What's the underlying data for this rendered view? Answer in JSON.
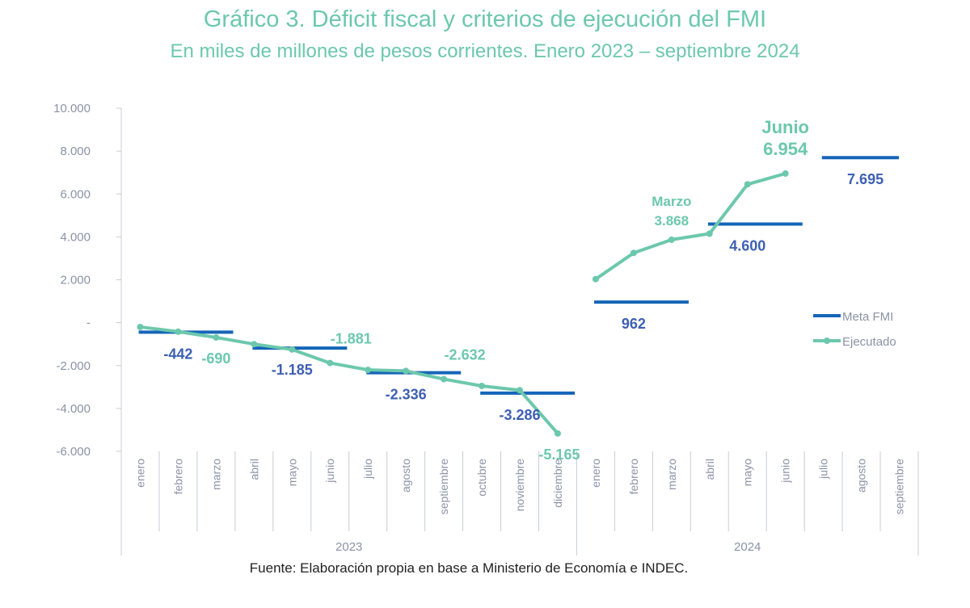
{
  "title": "Gráfico 3. Déficit fiscal y criterios de ejecución del FMI",
  "subtitle": "En miles de millones de pesos corrientes. Enero 2023 – septiembre 2024",
  "source": "Fuente: Elaboración propia en base a Ministerio de Economía e INDEC.",
  "colors": {
    "meta": "#1565b8",
    "ejecutado": "#6cc8ac",
    "meta_label": "#3d5fb5",
    "axis": "#c8ccd4"
  },
  "chart_data": {
    "type": "line",
    "ylim": [
      -6000,
      10000
    ],
    "yticks": [
      10000,
      8000,
      6000,
      4000,
      2000,
      0,
      -2000,
      -4000,
      -6000
    ],
    "ytick_labels": [
      "10.000",
      "8.000",
      "6.000",
      "4.000",
      "2.000",
      "-",
      "-2.000",
      "-4.000",
      "-6.000"
    ],
    "months": [
      "enero",
      "febrero",
      "marzo",
      "abril",
      "mayo",
      "junio",
      "julio",
      "agosto",
      "septiembre",
      "octubre",
      "noviembre",
      "diciembre",
      "enero",
      "febrero",
      "marzo",
      "abril",
      "mayo",
      "junio",
      "julio",
      "agosto",
      "septiembre"
    ],
    "years": [
      {
        "label": "2023",
        "start": 0,
        "end": 11
      },
      {
        "label": "2024",
        "start": 12,
        "end": 20
      }
    ],
    "legend": {
      "position": "right",
      "meta_name": "Meta FMI",
      "ejecutado_name": "Ejecutado"
    },
    "series": [
      {
        "name": "Ejecutado",
        "segments": [
          {
            "start": 0,
            "values": [
              -200,
              -420,
              -690,
              -1000,
              -1250,
              -1881,
              -2200,
              -2250,
              -2632,
              -2950,
              -3150,
              -5165
            ]
          },
          {
            "start": 12,
            "values": [
              2030,
              3250,
              3868,
              4150,
              6450,
              6954
            ]
          }
        ]
      },
      {
        "name": "Meta FMI",
        "steps": [
          {
            "from": 0,
            "to": 2,
            "value": -442
          },
          {
            "from": 3,
            "to": 5,
            "value": -1185
          },
          {
            "from": 6,
            "to": 8,
            "value": -2336
          },
          {
            "from": 9,
            "to": 11,
            "value": -3286
          },
          {
            "from": 12,
            "to": 14,
            "value": 962
          },
          {
            "from": 15,
            "to": 17,
            "value": 4600
          },
          {
            "from": 18,
            "to": 20,
            "value": 7695
          }
        ]
      }
    ],
    "labels": {
      "meta": [
        {
          "text": "-442",
          "idx": 1,
          "value": -442
        },
        {
          "text": "-1.185",
          "idx": 4,
          "value": -1185
        },
        {
          "text": "-2.336",
          "idx": 7,
          "value": -2336
        },
        {
          "text": "-3.286",
          "idx": 10,
          "value": -3286
        },
        {
          "text": "962",
          "idx": 13,
          "value": 962
        },
        {
          "text": "4.600",
          "idx": 16,
          "value": 4600
        },
        {
          "text": "7.695",
          "idx": 19,
          "value": 7695
        }
      ],
      "ejecutado": [
        {
          "text": "-690",
          "idx": 2,
          "value": -690
        },
        {
          "text": "-1.881",
          "idx": 5,
          "value": -1881
        },
        {
          "text": "-2.632",
          "idx": 8,
          "value": -2632
        },
        {
          "text": "-5.165",
          "idx": 11,
          "value": -5165
        }
      ],
      "annotations": [
        {
          "name": "Marzo",
          "text": "3.868",
          "idx": 14,
          "value": 3868,
          "size": "small"
        },
        {
          "name": "Junio",
          "text": "6.954",
          "idx": 17,
          "value": 6954,
          "size": "large"
        }
      ]
    }
  }
}
